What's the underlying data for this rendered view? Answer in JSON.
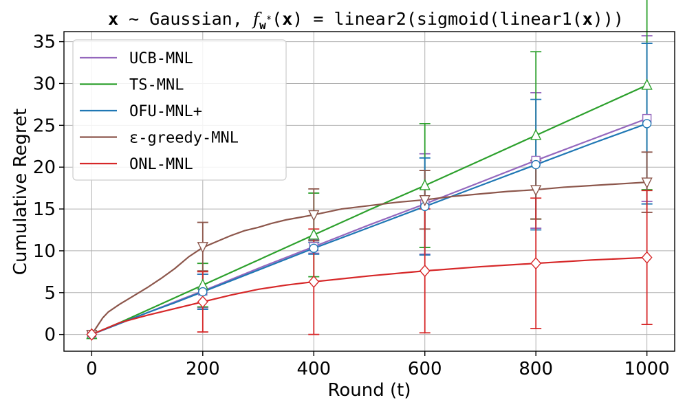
{
  "chart_data": {
    "type": "line",
    "title": "x ~ Gaussian, f_w*(x) = linear2(sigmoid(linear1(x)))",
    "title_parts": {
      "x_bold": "x",
      "tilde": " ~ Gaussian, ",
      "f": "f",
      "w_sub": "w",
      "star": "*",
      "paren_open": "(",
      "x_bold_2": "x",
      "eq": ") = linear2(sigmoid(linear1(",
      "x_bold_3": "x",
      "close": ")))"
    },
    "xlabel": "Round (t)",
    "ylabel": "Cumulative Regret",
    "xlim": [
      -50,
      1050
    ],
    "ylim": [
      -2,
      36.2
    ],
    "xticks": [
      0,
      200,
      400,
      600,
      800,
      1000
    ],
    "yticks": [
      0,
      5,
      10,
      15,
      20,
      25,
      30,
      35
    ],
    "grid": true,
    "legend_position": "upper-left",
    "x": [
      0,
      200,
      400,
      600,
      800,
      1000
    ],
    "series": [
      {
        "name": "UCB-MNL",
        "color": "#9467bd",
        "marker": "square",
        "values": [
          0,
          5.2,
          10.5,
          15.6,
          20.8,
          25.8
        ],
        "err": [
          0,
          2.0,
          0.8,
          6.0,
          8.1,
          9.9
        ],
        "curve": [
          [
            0,
            0
          ],
          [
            50,
            1.3
          ],
          [
            100,
            2.6
          ],
          [
            150,
            3.9
          ],
          [
            200,
            5.2
          ],
          [
            300,
            7.9
          ],
          [
            400,
            10.5
          ],
          [
            500,
            13.1
          ],
          [
            600,
            15.6
          ],
          [
            700,
            18.2
          ],
          [
            800,
            20.8
          ],
          [
            900,
            23.3
          ],
          [
            1000,
            25.8
          ]
        ]
      },
      {
        "name": "TS-MNL",
        "color": "#2ca02c",
        "marker": "triangle-up",
        "values": [
          0,
          5.9,
          11.9,
          17.8,
          23.8,
          29.8
        ],
        "err": [
          0,
          2.6,
          5.0,
          7.4,
          10.0,
          12.5
        ],
        "curve": [
          [
            0,
            0
          ],
          [
            50,
            1.4
          ],
          [
            100,
            2.9
          ],
          [
            150,
            4.4
          ],
          [
            200,
            5.9
          ],
          [
            300,
            8.9
          ],
          [
            400,
            11.9
          ],
          [
            500,
            14.9
          ],
          [
            600,
            17.8
          ],
          [
            700,
            20.8
          ],
          [
            800,
            23.8
          ],
          [
            900,
            26.8
          ],
          [
            1000,
            29.8
          ]
        ]
      },
      {
        "name": "OFU-MNL+",
        "color": "#1f77b4",
        "marker": "circle",
        "values": [
          0,
          5.1,
          10.3,
          15.3,
          20.3,
          25.2
        ],
        "err": [
          0,
          2.1,
          0.7,
          5.8,
          7.8,
          9.6
        ],
        "curve": [
          [
            0,
            0
          ],
          [
            50,
            1.3
          ],
          [
            100,
            2.6
          ],
          [
            150,
            3.8
          ],
          [
            200,
            5.1
          ],
          [
            300,
            7.7
          ],
          [
            400,
            10.3
          ],
          [
            500,
            12.8
          ],
          [
            600,
            15.3
          ],
          [
            700,
            17.8
          ],
          [
            800,
            20.3
          ],
          [
            900,
            22.8
          ],
          [
            1000,
            25.2
          ]
        ]
      },
      {
        "name": "ε-greedy-MNL",
        "color": "#8c564b",
        "marker": "triangle-down",
        "values": [
          0,
          10.5,
          14.3,
          16.1,
          17.3,
          18.2
        ],
        "err": [
          0,
          2.9,
          3.1,
          3.5,
          3.5,
          3.6
        ],
        "curve": [
          [
            0,
            0
          ],
          [
            10,
            1.0
          ],
          [
            20,
            2.0
          ],
          [
            30,
            2.7
          ],
          [
            50,
            3.6
          ],
          [
            75,
            4.6
          ],
          [
            100,
            5.6
          ],
          [
            125,
            6.7
          ],
          [
            150,
            7.9
          ],
          [
            175,
            9.3
          ],
          [
            200,
            10.4
          ],
          [
            225,
            11.1
          ],
          [
            250,
            11.8
          ],
          [
            275,
            12.4
          ],
          [
            300,
            12.8
          ],
          [
            325,
            13.3
          ],
          [
            350,
            13.7
          ],
          [
            375,
            14.0
          ],
          [
            400,
            14.3
          ],
          [
            450,
            15.0
          ],
          [
            500,
            15.4
          ],
          [
            550,
            15.8
          ],
          [
            600,
            16.1
          ],
          [
            650,
            16.5
          ],
          [
            700,
            16.8
          ],
          [
            750,
            17.1
          ],
          [
            800,
            17.3
          ],
          [
            850,
            17.6
          ],
          [
            900,
            17.8
          ],
          [
            950,
            18.0
          ],
          [
            1000,
            18.2
          ]
        ]
      },
      {
        "name": "ONL-MNL",
        "color": "#d62728",
        "marker": "diamond",
        "values": [
          0,
          3.9,
          6.3,
          7.6,
          8.5,
          9.2
        ],
        "err": [
          0,
          3.6,
          6.3,
          7.4,
          7.8,
          8.0
        ],
        "curve": [
          [
            0,
            0
          ],
          [
            50,
            1.4
          ],
          [
            100,
            2.3
          ],
          [
            150,
            3.1
          ],
          [
            200,
            3.9
          ],
          [
            250,
            4.7
          ],
          [
            300,
            5.4
          ],
          [
            350,
            5.9
          ],
          [
            400,
            6.3
          ],
          [
            500,
            7.0
          ],
          [
            600,
            7.6
          ],
          [
            700,
            8.1
          ],
          [
            800,
            8.5
          ],
          [
            900,
            8.9
          ],
          [
            1000,
            9.2
          ]
        ]
      }
    ]
  }
}
